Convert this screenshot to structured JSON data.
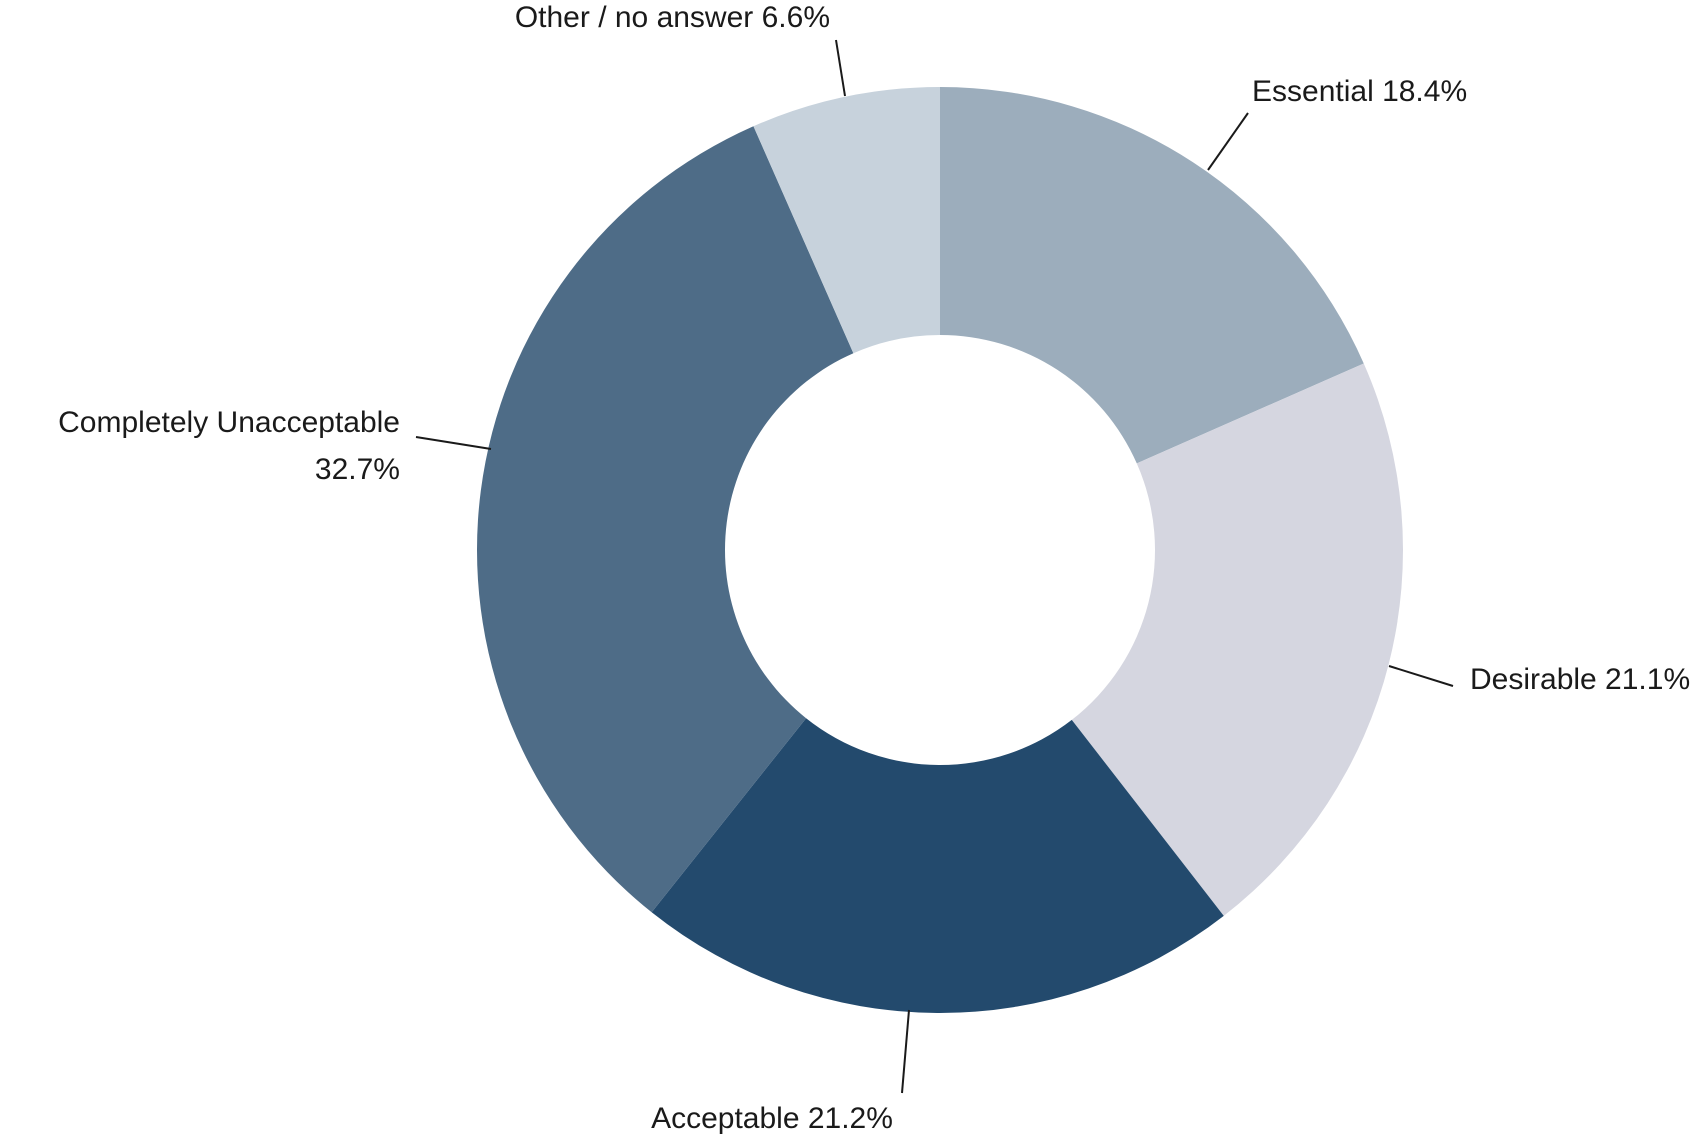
{
  "chart_data": {
    "type": "pie",
    "variant": "donut",
    "title": "",
    "slices": [
      {
        "label": "Essential",
        "value": 18.4,
        "value_label": "18.4%",
        "color": "#9CADBC"
      },
      {
        "label": "Desirable",
        "value": 21.1,
        "value_label": "21.1%",
        "color": "#D5D6E0"
      },
      {
        "label": "Acceptable",
        "value": 21.2,
        "value_label": "21.2%",
        "color": "#234A6D"
      },
      {
        "label": "Completely Unacceptable",
        "value": 32.7,
        "value_label": "32.7%",
        "color": "#4E6C87"
      },
      {
        "label": "Other / no answer",
        "value": 6.6,
        "value_label": "6.6%",
        "color": "#C7D2DC"
      }
    ],
    "start": "12 o'clock",
    "direction": "clockwise",
    "legend": "none",
    "background": "#FFFFFF"
  }
}
